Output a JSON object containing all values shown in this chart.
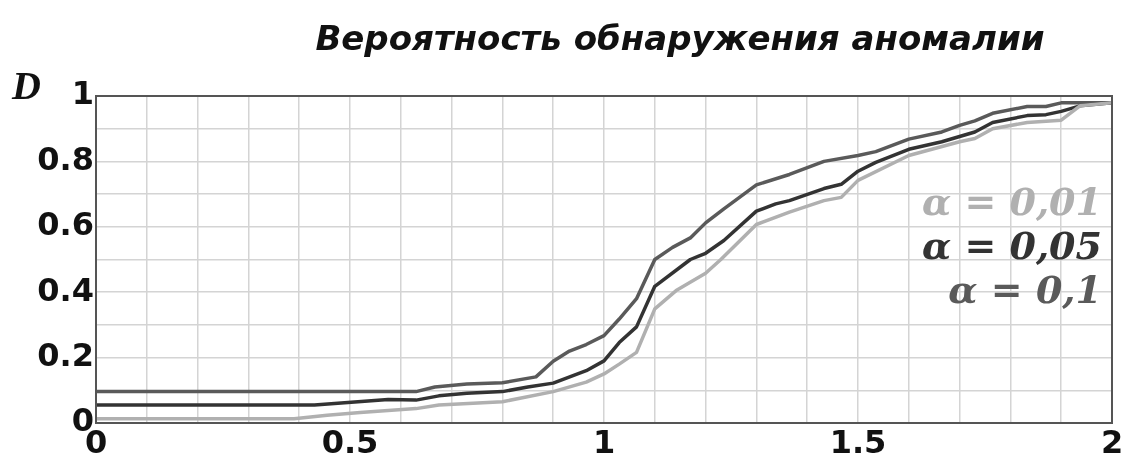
{
  "chart_data": {
    "type": "line",
    "title": "Вероятность обнаружения аномалии",
    "ylabel": "D",
    "xlim": [
      0,
      2
    ],
    "ylim": [
      0,
      1
    ],
    "xticks": [
      0,
      {
        "value": 0.1,
        "label": null
      },
      {
        "value": 0.2,
        "label": null
      },
      {
        "value": 0.3,
        "label": null
      },
      {
        "value": 0.4,
        "label": null
      },
      0.5,
      {
        "value": 0.6,
        "label": null
      },
      {
        "value": 0.7,
        "label": null
      },
      {
        "value": 0.8,
        "label": null
      },
      {
        "value": 0.9,
        "label": null
      },
      1,
      {
        "value": 1.1,
        "label": null
      },
      {
        "value": 1.2,
        "label": null
      },
      {
        "value": 1.3,
        "label": null
      },
      {
        "value": 1.4,
        "label": null
      },
      1.5,
      {
        "value": 1.6,
        "label": null
      },
      {
        "value": 1.7,
        "label": null
      },
      {
        "value": 1.8,
        "label": null
      },
      {
        "value": 1.9,
        "label": null
      },
      2
    ],
    "yticks": [
      0,
      {
        "value": 0.1,
        "label": null
      },
      0.2,
      {
        "value": 0.3,
        "label": null
      },
      0.4,
      {
        "value": 0.5,
        "label": null
      },
      0.6,
      {
        "value": 0.7,
        "label": null
      },
      0.8,
      {
        "value": 0.9,
        "label": null
      },
      1
    ],
    "grid": true,
    "legend": "right",
    "marker": "none",
    "line_style": "solid",
    "series": [
      {
        "name": "α = 0,01",
        "color": "#b0b0b0",
        "x": [
          0,
          0.39,
          0.455,
          0.52,
          0.63,
          0.675,
          0.8,
          0.9,
          0.965,
          1.0,
          1.03,
          1.064,
          1.1,
          1.142,
          1.2,
          1.23,
          1.3,
          1.365,
          1.433,
          1.467,
          1.5,
          1.6,
          1.7,
          1.73,
          1.765,
          1.833,
          1.9,
          1.937,
          2.0
        ],
        "values": [
          0.013,
          0.013,
          0.024,
          0.032,
          0.044,
          0.055,
          0.065,
          0.096,
          0.125,
          0.15,
          0.18,
          0.216,
          0.349,
          0.405,
          0.458,
          0.5,
          0.607,
          0.645,
          0.68,
          0.69,
          0.742,
          0.818,
          0.86,
          0.87,
          0.9,
          0.919,
          0.926,
          0.97,
          0.979
        ]
      },
      {
        "name": "α = 0,05",
        "color": "#333333",
        "x": [
          0,
          0.43,
          0.575,
          0.63,
          0.675,
          0.73,
          0.8,
          0.85,
          0.9,
          0.965,
          1.0,
          1.03,
          1.064,
          1.1,
          1.17,
          1.2,
          1.236,
          1.3,
          1.338,
          1.365,
          1.433,
          1.467,
          1.5,
          1.535,
          1.6,
          1.665,
          1.73,
          1.765,
          1.833,
          1.87,
          1.9,
          1.937,
          2.0
        ],
        "values": [
          0.055,
          0.055,
          0.072,
          0.07,
          0.083,
          0.091,
          0.096,
          0.11,
          0.122,
          0.16,
          0.19,
          0.246,
          0.294,
          0.418,
          0.5,
          0.519,
          0.558,
          0.648,
          0.67,
          0.68,
          0.717,
          0.73,
          0.77,
          0.797,
          0.837,
          0.86,
          0.89,
          0.919,
          0.94,
          0.943,
          0.953,
          0.97,
          0.979
        ]
      },
      {
        "name": "α = 0,1",
        "color": "#5a5a5a",
        "x": [
          0,
          0.63,
          0.667,
          0.73,
          0.8,
          0.866,
          0.9,
          0.932,
          0.965,
          1.0,
          1.03,
          1.064,
          1.1,
          1.135,
          1.17,
          1.2,
          1.236,
          1.3,
          1.365,
          1.433,
          1.5,
          1.535,
          1.6,
          1.665,
          1.7,
          1.73,
          1.765,
          1.833,
          1.87,
          1.9,
          1.937,
          2.0
        ],
        "values": [
          0.096,
          0.096,
          0.11,
          0.119,
          0.123,
          0.141,
          0.189,
          0.22,
          0.24,
          0.267,
          0.318,
          0.38,
          0.5,
          0.537,
          0.566,
          0.612,
          0.655,
          0.728,
          0.76,
          0.8,
          0.818,
          0.83,
          0.868,
          0.89,
          0.91,
          0.924,
          0.947,
          0.968,
          0.968,
          0.979,
          0.979,
          0.979
        ]
      }
    ]
  }
}
